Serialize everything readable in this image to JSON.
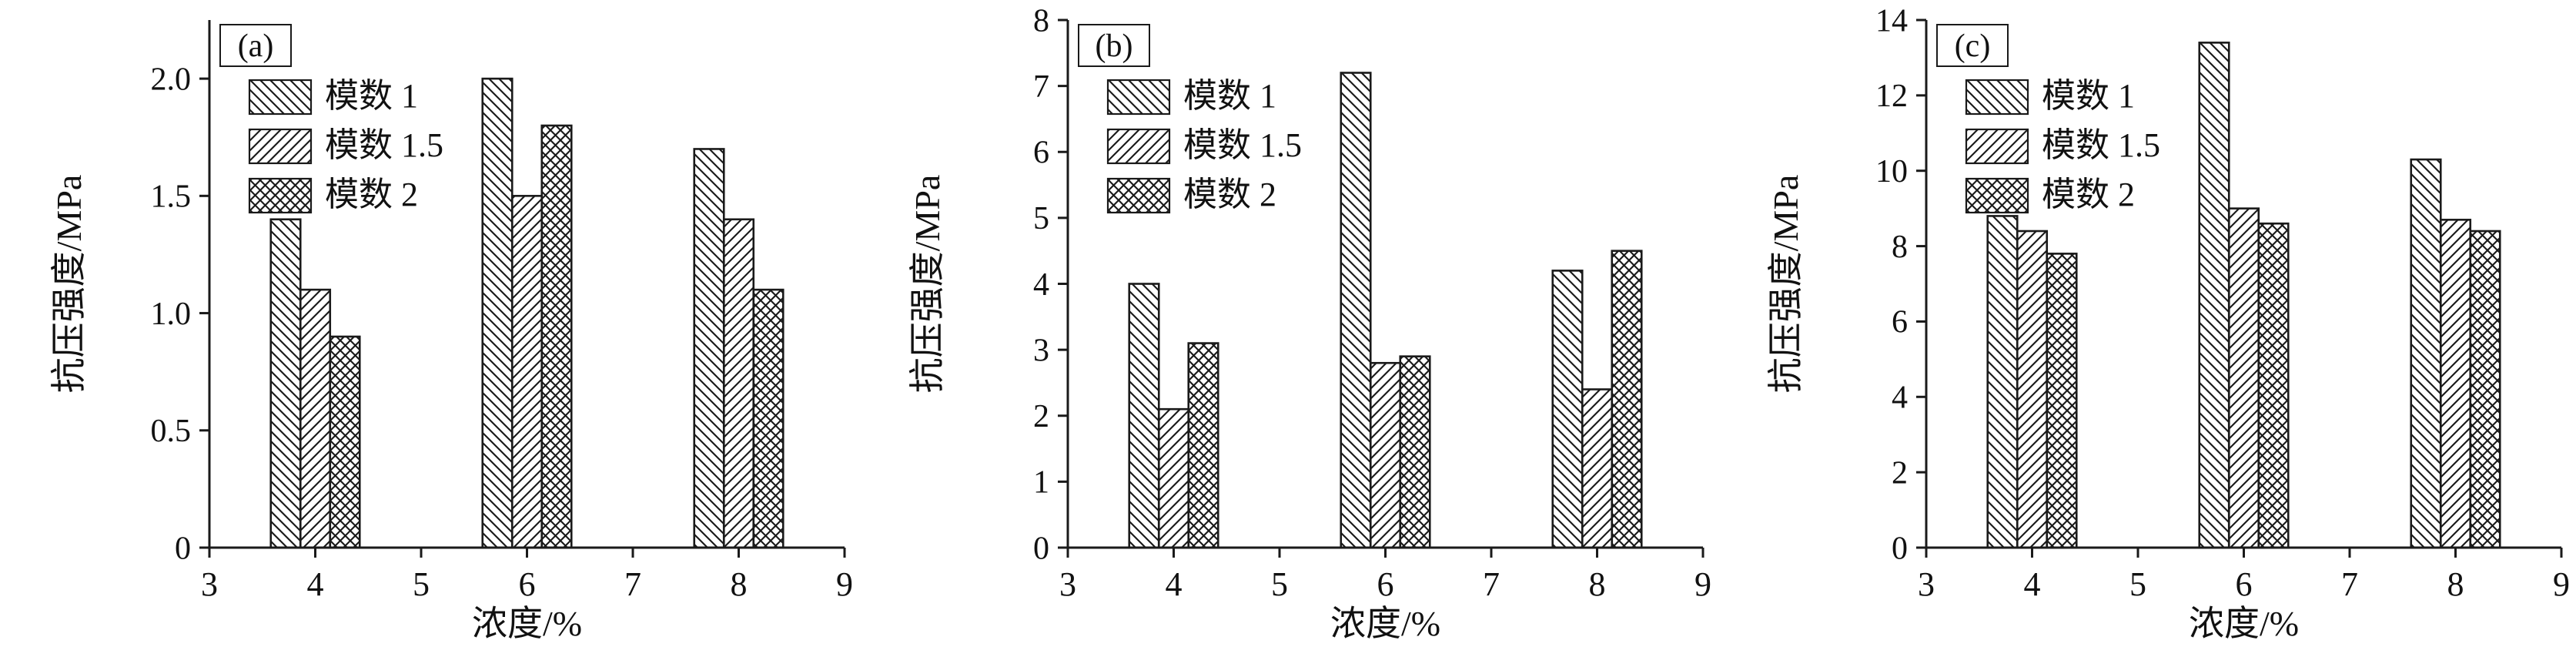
{
  "figure": {
    "background": "#ffffff",
    "ink_color": "#1a1a1a",
    "description": "Three-panel grouped bar figure of compressive strength vs concentration for three modulus values"
  },
  "chart_data": [
    {
      "type": "bar",
      "panel_label": "(a)",
      "title": "",
      "xlabel": "浓度/%",
      "ylabel": "抗压强度/MPa",
      "categories": [
        4,
        6,
        8
      ],
      "series": [
        {
          "name": "模数 1",
          "hatch": "back-diagonal",
          "values": [
            1.4,
            2.0,
            1.7
          ]
        },
        {
          "name": "模数 1.5",
          "hatch": "forward-diagonal",
          "values": [
            1.1,
            1.5,
            1.4
          ]
        },
        {
          "name": "模数 2",
          "hatch": "crosshatch",
          "values": [
            0.9,
            1.8,
            1.1
          ]
        }
      ],
      "xlim": [
        3,
        9
      ],
      "xticks": [
        3,
        4,
        5,
        6,
        7,
        8,
        9
      ],
      "xtick_labels": [
        "3",
        "4",
        "5",
        "6",
        "7",
        "8",
        "9"
      ],
      "ylim": [
        0,
        2.25
      ],
      "yticks": [
        0,
        0.5,
        1.0,
        1.5,
        2.0
      ],
      "ytick_labels": [
        "0",
        "0.5",
        "1.0",
        "1.5",
        "2.0"
      ],
      "grid": false,
      "legend_position": "upper-left"
    },
    {
      "type": "bar",
      "panel_label": "(b)",
      "title": "",
      "xlabel": "浓度/%",
      "ylabel": "抗压强度/MPa",
      "categories": [
        4,
        6,
        8
      ],
      "series": [
        {
          "name": "模数 1",
          "hatch": "back-diagonal",
          "values": [
            4.0,
            7.2,
            4.2
          ]
        },
        {
          "name": "模数 1.5",
          "hatch": "forward-diagonal",
          "values": [
            2.1,
            2.8,
            2.4
          ]
        },
        {
          "name": "模数 2",
          "hatch": "crosshatch",
          "values": [
            3.1,
            2.9,
            4.5
          ]
        }
      ],
      "xlim": [
        3,
        9
      ],
      "xticks": [
        3,
        4,
        5,
        6,
        7,
        8,
        9
      ],
      "xtick_labels": [
        "3",
        "4",
        "5",
        "6",
        "7",
        "8",
        "9"
      ],
      "ylim": [
        0,
        8
      ],
      "yticks": [
        0,
        1,
        2,
        3,
        4,
        5,
        6,
        7,
        8
      ],
      "ytick_labels": [
        "0",
        "1",
        "2",
        "3",
        "4",
        "5",
        "6",
        "7",
        "8"
      ],
      "grid": false,
      "legend_position": "upper-left"
    },
    {
      "type": "bar",
      "panel_label": "(c)",
      "title": "",
      "xlabel": "浓度/%",
      "ylabel": "抗压强度/MPa",
      "categories": [
        4,
        6,
        8
      ],
      "series": [
        {
          "name": "模数 1",
          "hatch": "back-diagonal",
          "values": [
            8.8,
            13.4,
            10.3
          ]
        },
        {
          "name": "模数 1.5",
          "hatch": "forward-diagonal",
          "values": [
            8.4,
            9.0,
            8.7
          ]
        },
        {
          "name": "模数 2",
          "hatch": "crosshatch",
          "values": [
            7.8,
            8.6,
            8.4
          ]
        }
      ],
      "xlim": [
        3,
        9
      ],
      "xticks": [
        3,
        4,
        5,
        6,
        7,
        8,
        9
      ],
      "xtick_labels": [
        "3",
        "4",
        "5",
        "6",
        "7",
        "8",
        "9"
      ],
      "ylim": [
        0,
        14
      ],
      "yticks": [
        0,
        2,
        4,
        6,
        8,
        10,
        12,
        14
      ],
      "ytick_labels": [
        "0",
        "2",
        "4",
        "6",
        "8",
        "10",
        "12",
        "14"
      ],
      "grid": false,
      "legend_position": "upper-left"
    }
  ]
}
